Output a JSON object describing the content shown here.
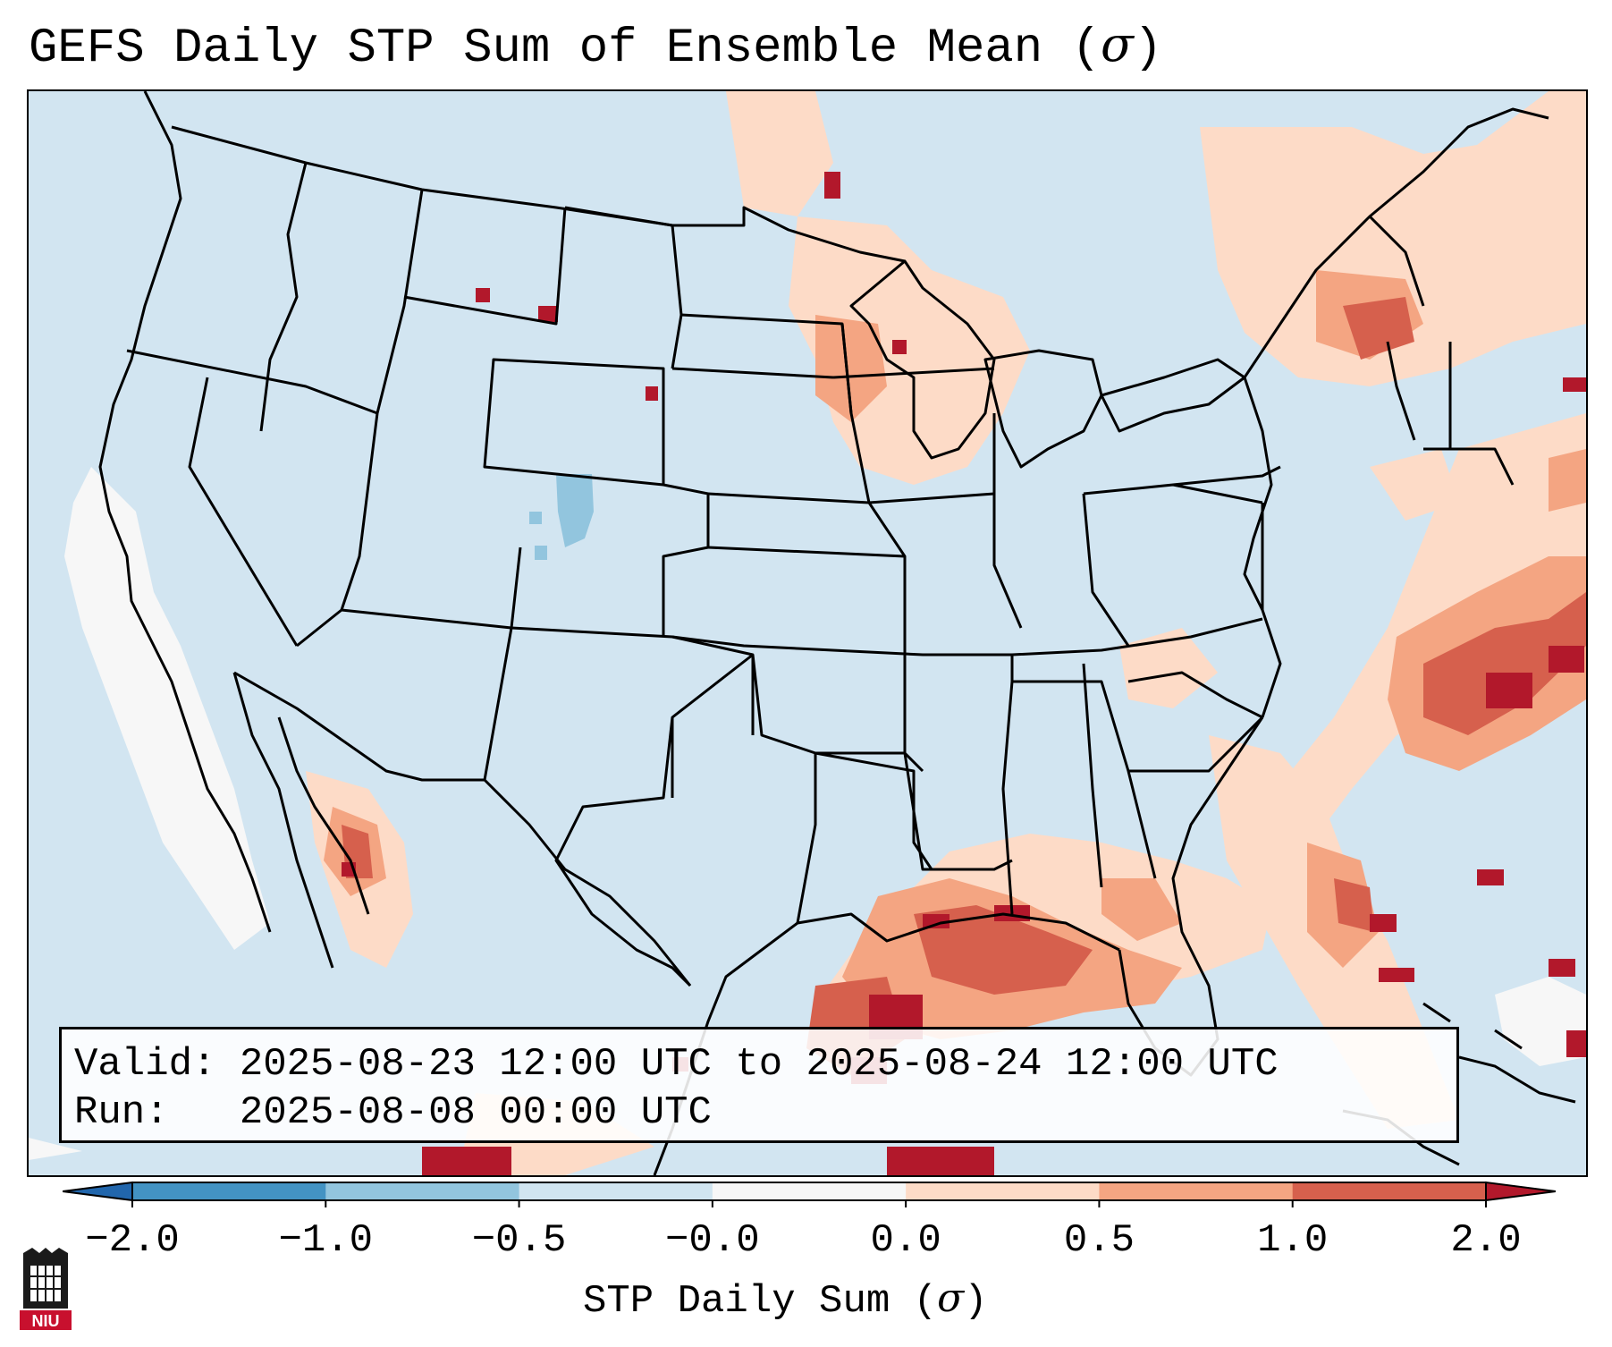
{
  "title": {
    "text": "GEFS Daily STP Sum of Ensemble Mean (",
    "symbol": "σ",
    "close": ")"
  },
  "info": {
    "valid_label": "Valid:",
    "valid_value": "2025-08-23 12:00 UTC to 2025-08-24 12:00 UTC",
    "run_label": "Run:",
    "run_value": "2025-08-08 00:00 UTC"
  },
  "colorbar": {
    "label": "STP Daily Sum (",
    "symbol": "σ",
    "label_close": ")",
    "ticks": [
      "−2.0",
      "−1.0",
      "−0.5",
      "−0.0",
      "0.0",
      "0.5",
      "1.0",
      "2.0"
    ],
    "bins": [
      {
        "range": "< -2.0",
        "color": "#2166ac"
      },
      {
        "range": "-2.0 to -1.0",
        "color": "#4393c3"
      },
      {
        "range": "-1.0 to -0.5",
        "color": "#92c5de"
      },
      {
        "range": "-0.5 to -0.0",
        "color": "#d1e5f0"
      },
      {
        "range": "-0.0 to 0.0",
        "color": "#f7f7f7"
      },
      {
        "range": "0.0 to 0.5",
        "color": "#fddbc7"
      },
      {
        "range": "0.5 to 1.0",
        "color": "#f4a582"
      },
      {
        "range": "1.0 to 2.0",
        "color": "#d6604d"
      },
      {
        "range": "> 2.0",
        "color": "#b2182b"
      }
    ]
  },
  "logo": {
    "text": "NIU",
    "color": "#c8102e"
  }
}
